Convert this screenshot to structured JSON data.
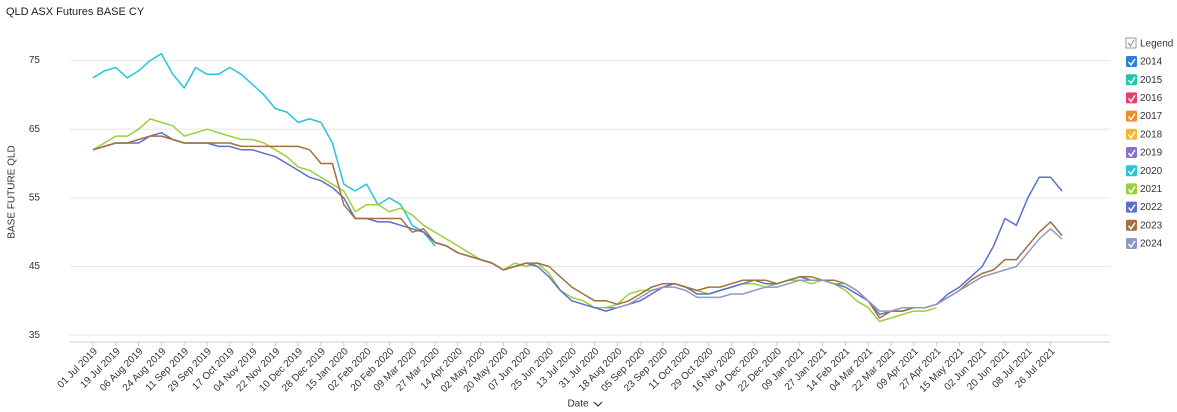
{
  "chart_data": {
    "type": "line",
    "title": "QLD ASX Futures BASE CY",
    "x_label": "Date",
    "y_label": "BASE FUTURE QLD",
    "legend_title": "Legend",
    "legend_position": "right",
    "grid": true,
    "ylim": [
      34,
      78
    ],
    "yticks": [
      35,
      45,
      55,
      65,
      75
    ],
    "categories": [
      "01 Jul 2019",
      null,
      "19 Jul 2019",
      null,
      "06 Aug 2019",
      null,
      "24 Aug 2019",
      null,
      "11 Sep 2019",
      null,
      "29 Sep 2019",
      null,
      "17 Oct 2019",
      null,
      "04 Nov 2019",
      null,
      "22 Nov 2019",
      null,
      "10 Dec 2019",
      null,
      "28 Dec 2019",
      null,
      "15 Jan 2020",
      null,
      "02 Feb 2020",
      null,
      "20 Feb 2020",
      null,
      "09 Mar 2020",
      null,
      "27 Mar 2020",
      null,
      "14 Apr 2020",
      null,
      "02 May 2020",
      null,
      "20 May 2020",
      null,
      "07 Jun 2020",
      null,
      "25 Jun 2020",
      null,
      "13 Jul 2020",
      null,
      "31 Jul 2020",
      null,
      "18 Aug 2020",
      null,
      "05 Sep 2020",
      null,
      "23 Sep 2020",
      null,
      "11 Oct 2020",
      null,
      "29 Oct 2020",
      null,
      "16 Nov 2020",
      null,
      "04 Dec 2020",
      null,
      "22 Dec 2020",
      null,
      "09 Jan 2021",
      null,
      "27 Jan 2021",
      null,
      "14 Feb 2021",
      null,
      "04 Mar 2021",
      null,
      "22 Mar 2021",
      null,
      "09 Apr 2021",
      null,
      "27 Apr 2021",
      null,
      "15 May 2021",
      null,
      "02 Jun 2021",
      null,
      "20 Jun 2021",
      null,
      "08 Jul 2021",
      null,
      "26 Jul 2021",
      null
    ],
    "series": [
      {
        "name": "2014",
        "color": "#2d7fd8",
        "values": [
          null,
          null,
          null,
          null,
          null,
          null,
          null,
          null,
          null,
          null,
          null,
          null,
          null,
          null,
          null,
          null,
          null,
          null,
          null,
          null,
          null,
          null,
          null,
          null,
          null,
          null,
          null,
          null,
          null,
          null,
          null,
          null,
          null,
          null,
          null,
          null,
          null,
          null,
          null,
          null,
          null,
          null,
          null,
          null,
          null,
          null,
          null,
          null,
          null,
          null,
          null,
          null,
          null,
          null,
          null,
          null,
          null,
          null,
          null,
          null,
          null,
          null,
          null,
          null,
          null,
          null,
          null,
          null,
          null,
          null,
          null,
          null,
          null,
          null,
          null,
          null,
          null,
          null,
          null,
          null,
          null,
          null,
          null,
          null,
          null,
          null
        ]
      },
      {
        "name": "2015",
        "color": "#1fc9a5",
        "values": [
          null,
          null,
          null,
          null,
          null,
          null,
          null,
          null,
          null,
          null,
          null,
          null,
          null,
          null,
          null,
          null,
          null,
          null,
          null,
          null,
          null,
          null,
          null,
          null,
          null,
          null,
          null,
          null,
          null,
          null,
          null,
          null,
          null,
          null,
          null,
          null,
          null,
          null,
          null,
          null,
          null,
          null,
          null,
          null,
          null,
          null,
          null,
          null,
          null,
          null,
          null,
          null,
          null,
          null,
          null,
          null,
          null,
          null,
          null,
          null,
          null,
          null,
          null,
          null,
          null,
          null,
          null,
          null,
          null,
          null,
          null,
          null,
          null,
          null,
          null,
          null,
          null,
          null,
          null,
          null,
          null,
          null,
          null,
          null,
          null,
          null
        ]
      },
      {
        "name": "2016",
        "color": "#e0446d",
        "values": [
          null,
          null,
          null,
          null,
          null,
          null,
          null,
          null,
          null,
          null,
          null,
          null,
          null,
          null,
          null,
          null,
          null,
          null,
          null,
          null,
          null,
          null,
          null,
          null,
          null,
          null,
          null,
          null,
          null,
          null,
          null,
          null,
          null,
          null,
          null,
          null,
          null,
          null,
          null,
          null,
          null,
          null,
          null,
          null,
          null,
          null,
          null,
          null,
          null,
          null,
          null,
          null,
          null,
          null,
          null,
          null,
          null,
          null,
          null,
          null,
          null,
          null,
          null,
          null,
          null,
          null,
          null,
          null,
          null,
          null,
          null,
          null,
          null,
          null,
          null,
          null,
          null,
          null,
          null,
          null,
          null,
          null,
          null,
          null,
          null,
          null
        ]
      },
      {
        "name": "2017",
        "color": "#f08a2b",
        "values": [
          null,
          null,
          null,
          null,
          null,
          null,
          null,
          null,
          null,
          null,
          null,
          null,
          null,
          null,
          null,
          null,
          null,
          null,
          null,
          null,
          null,
          null,
          null,
          null,
          null,
          null,
          null,
          null,
          null,
          null,
          null,
          null,
          null,
          null,
          null,
          null,
          null,
          null,
          null,
          null,
          null,
          null,
          null,
          null,
          null,
          null,
          null,
          null,
          null,
          null,
          null,
          null,
          null,
          null,
          null,
          null,
          null,
          null,
          null,
          null,
          null,
          null,
          null,
          null,
          null,
          null,
          null,
          null,
          null,
          null,
          null,
          null,
          null,
          null,
          null,
          null,
          null,
          null,
          null,
          null,
          null,
          null,
          null,
          null,
          null,
          null
        ]
      },
      {
        "name": "2018",
        "color": "#f5b731",
        "values": [
          null,
          null,
          null,
          null,
          null,
          null,
          null,
          null,
          null,
          null,
          null,
          null,
          null,
          null,
          null,
          null,
          null,
          null,
          null,
          null,
          null,
          null,
          null,
          null,
          null,
          null,
          null,
          null,
          null,
          null,
          null,
          null,
          null,
          null,
          null,
          null,
          null,
          null,
          null,
          null,
          null,
          null,
          null,
          null,
          null,
          null,
          null,
          null,
          null,
          null,
          null,
          null,
          null,
          null,
          null,
          null,
          null,
          null,
          null,
          null,
          null,
          null,
          null,
          null,
          null,
          null,
          null,
          null,
          null,
          null,
          null,
          null,
          null,
          null,
          null,
          null,
          null,
          null,
          null,
          null,
          null,
          null,
          null,
          null,
          null,
          null
        ]
      },
      {
        "name": "2019",
        "color": "#8c6fd1",
        "values": [
          null,
          null,
          null,
          null,
          null,
          null,
          null,
          null,
          null,
          null,
          null,
          null,
          null,
          null,
          null,
          null,
          null,
          null,
          null,
          null,
          null,
          null,
          null,
          null,
          null,
          null,
          null,
          null,
          null,
          null,
          null,
          null,
          null,
          null,
          null,
          null,
          null,
          null,
          null,
          null,
          null,
          null,
          null,
          null,
          null,
          null,
          null,
          null,
          null,
          null,
          null,
          null,
          null,
          null,
          null,
          null,
          null,
          null,
          null,
          null,
          null,
          null,
          null,
          null,
          null,
          null,
          null,
          null,
          null,
          null,
          null,
          null,
          null,
          null,
          null,
          null,
          null,
          null,
          null,
          null,
          null,
          null,
          null,
          null,
          null,
          null
        ]
      },
      {
        "name": "2020",
        "color": "#26c6da",
        "values": [
          72.5,
          73.5,
          74,
          72.5,
          73.5,
          75,
          76,
          73,
          71,
          74,
          73,
          73,
          74,
          73,
          71.5,
          70,
          68,
          67.5,
          66,
          66.5,
          66,
          63,
          57,
          56,
          57,
          54,
          55,
          54,
          51,
          50,
          48,
          null,
          null,
          null,
          null,
          null,
          null,
          null,
          null,
          null,
          null,
          null,
          null,
          null,
          null,
          null,
          null,
          null,
          null,
          null,
          null,
          null,
          null,
          null,
          null,
          null,
          null,
          null,
          null,
          null,
          null,
          null,
          null,
          null,
          null,
          null,
          null,
          null,
          null,
          null,
          null,
          null,
          null,
          null,
          null,
          null,
          null,
          null,
          null,
          null,
          null,
          null,
          null,
          null,
          null,
          null
        ]
      },
      {
        "name": "2021",
        "color": "#9ad13a",
        "values": [
          62,
          63,
          64,
          64,
          65,
          66.5,
          66,
          65.5,
          64,
          64.5,
          65,
          64.5,
          64,
          63.5,
          63.5,
          63,
          62,
          61,
          59.5,
          59,
          58,
          57,
          56,
          53,
          54,
          54,
          53,
          53.5,
          52.5,
          51,
          50,
          49,
          48,
          47,
          46,
          45.5,
          44.5,
          45.5,
          45,
          45.5,
          44,
          41.5,
          40.5,
          40,
          39,
          39,
          39.5,
          41,
          41.5,
          41.5,
          42,
          42.5,
          42,
          41.5,
          41,
          41.5,
          42,
          42.5,
          42.5,
          42,
          42.5,
          43,
          43,
          42.5,
          43,
          42.5,
          41.5,
          40,
          39,
          37,
          37.5,
          38,
          38.5,
          38.5,
          39,
          null,
          null,
          null,
          null,
          null,
          null,
          null,
          null,
          null,
          null,
          null
        ]
      },
      {
        "name": "2022",
        "color": "#5c6fcf",
        "values": [
          62,
          62.5,
          63,
          63,
          63,
          64,
          64.5,
          63.5,
          63,
          63,
          63,
          62.5,
          62.5,
          62,
          62,
          61.5,
          61,
          60,
          59,
          58,
          57.5,
          56.5,
          55,
          52,
          52,
          51.5,
          51.5,
          51,
          50.5,
          50,
          48.5,
          48,
          47,
          46.5,
          46,
          45.5,
          44.5,
          45,
          45.5,
          45,
          43.5,
          41.5,
          40,
          39.5,
          39,
          38.5,
          39,
          39.5,
          40,
          41,
          42,
          42.5,
          42,
          41,
          41,
          41.5,
          42,
          42.5,
          43,
          42.5,
          42.5,
          43,
          43.5,
          43,
          43,
          42.5,
          42,
          41,
          40,
          38,
          38.5,
          38.5,
          39,
          39,
          39.5,
          41,
          42,
          43.5,
          45,
          48,
          52,
          51,
          55,
          58,
          58,
          56
        ]
      },
      {
        "name": "2023",
        "color": "#a2703e",
        "values": [
          62,
          62.5,
          63,
          63,
          63.5,
          64,
          64,
          63.5,
          63,
          63,
          63,
          63,
          63,
          62.5,
          62.5,
          62.5,
          62.5,
          62.5,
          62.5,
          62,
          60,
          60,
          54,
          52,
          52,
          52,
          52,
          52,
          50,
          50.5,
          48.5,
          48,
          47,
          46.5,
          46,
          45.5,
          44.5,
          45,
          45.5,
          45.5,
          45,
          43.5,
          42,
          41,
          40,
          40,
          39.5,
          40,
          41,
          42,
          42.5,
          42.5,
          42,
          41.5,
          42,
          42,
          42.5,
          43,
          43,
          43,
          42.5,
          43,
          43.5,
          43.5,
          43,
          43,
          42.5,
          41.5,
          40,
          37.5,
          38.5,
          38.5,
          39,
          39,
          39.5,
          40.5,
          41.5,
          43,
          44,
          44.5,
          46,
          46,
          48,
          50,
          51.5,
          49.5
        ]
      },
      {
        "name": "2024",
        "color": "#8d9ac4",
        "values": [
          null,
          null,
          null,
          null,
          null,
          null,
          null,
          null,
          null,
          null,
          null,
          null,
          null,
          null,
          null,
          null,
          null,
          null,
          null,
          null,
          null,
          null,
          null,
          null,
          null,
          null,
          null,
          null,
          null,
          null,
          null,
          null,
          null,
          null,
          null,
          null,
          null,
          null,
          null,
          null,
          null,
          null,
          null,
          null,
          null,
          39,
          39,
          39.5,
          40.5,
          41.5,
          42,
          42,
          41.5,
          40.5,
          40.5,
          40.5,
          41,
          41,
          41.5,
          42,
          42,
          42.5,
          43,
          43,
          43,
          42.5,
          42.5,
          41.5,
          40,
          38.5,
          38.5,
          39,
          39,
          39,
          39.5,
          40.5,
          41.5,
          42.5,
          43.5,
          44,
          44.5,
          45,
          47,
          49,
          50.5,
          49
        ]
      }
    ]
  }
}
